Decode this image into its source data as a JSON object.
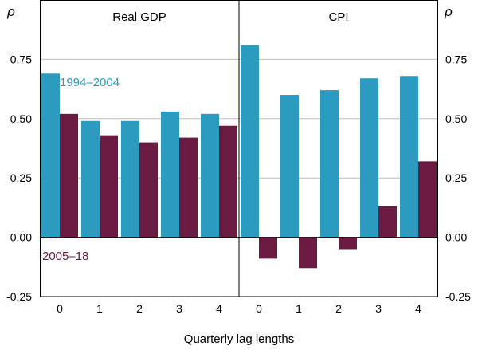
{
  "chart_data": {
    "type": "bar",
    "ylim": [
      -0.25,
      1.0
    ],
    "y_ticks": [
      "-0.25",
      "0.00",
      "0.25",
      "0.50",
      "0.75"
    ],
    "y_axis_symbol": "ρ",
    "xlabel": "Quarterly lag lengths",
    "categories": [
      "0",
      "1",
      "2",
      "3",
      "4"
    ],
    "series_colors": {
      "1994–2004": "#2b9bbf",
      "2005–18": "#6b1a42"
    },
    "panels": [
      {
        "title": "Real GDP",
        "series": [
          {
            "name": "1994–2004",
            "values": [
              0.69,
              0.49,
              0.49,
              0.53,
              0.52
            ]
          },
          {
            "name": "2005–18",
            "values": [
              0.52,
              0.43,
              0.4,
              0.42,
              0.47
            ]
          }
        ]
      },
      {
        "title": "CPI",
        "series": [
          {
            "name": "1994–2004",
            "values": [
              0.81,
              0.6,
              0.62,
              0.67,
              0.68
            ]
          },
          {
            "name": "2005–18",
            "values": [
              -0.09,
              -0.13,
              -0.05,
              0.13,
              0.32
            ]
          }
        ]
      }
    ],
    "legend": [
      {
        "label": "1994–2004",
        "panel": 0,
        "placement": "upper-left"
      },
      {
        "label": "2005–18",
        "panel": 0,
        "placement": "lower-left"
      }
    ]
  }
}
